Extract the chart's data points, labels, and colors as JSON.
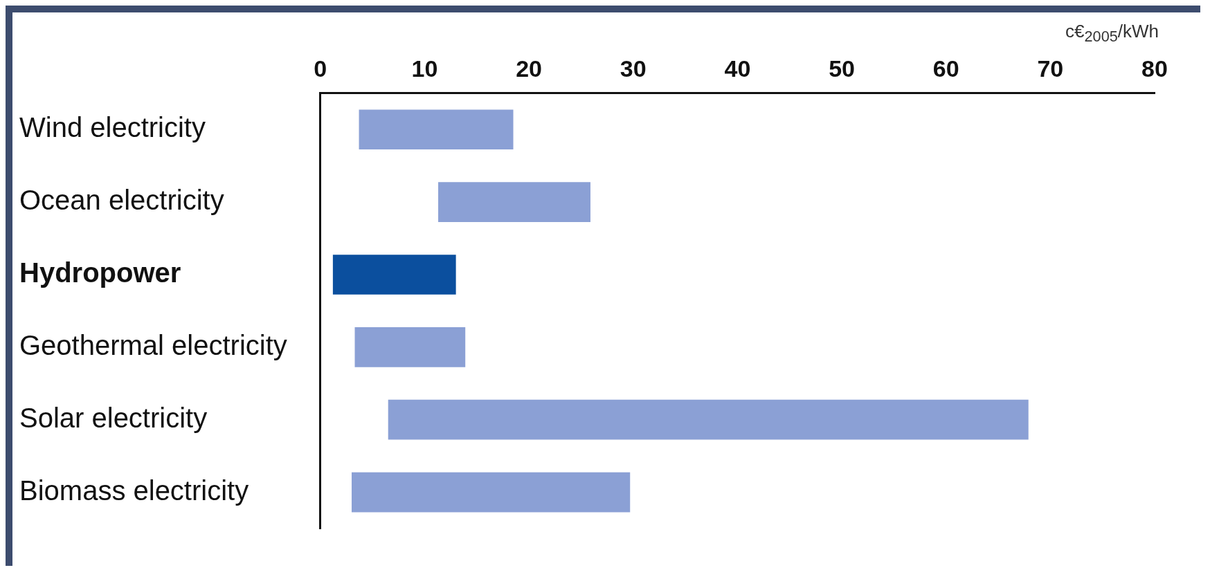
{
  "chart_data": {
    "type": "bar",
    "orientation": "horizontal",
    "xlabel": "c€$_{2005}$/kWh",
    "categories": [
      "Wind electricity",
      "Ocean electricity",
      "Hydropower",
      "Geothermal electricity",
      "Solar electricity",
      "Biomass electricity"
    ],
    "base": [
      3.7,
      11.3,
      1.2,
      3.3,
      6.5,
      3.0
    ],
    "values": [
      14.8,
      14.6,
      11.8,
      10.6,
      61.4,
      26.7
    ],
    "colors": [
      "#8ba0d5",
      "#8ba0d5",
      "#0b4f9e",
      "#8ba0d5",
      "#8ba0d5",
      "#8ba0d5"
    ],
    "xlim": [
      0,
      80
    ],
    "xticks": [
      0,
      10,
      20,
      30,
      40,
      50,
      60,
      70,
      80
    ],
    "grid": false,
    "legend": false
  }
}
